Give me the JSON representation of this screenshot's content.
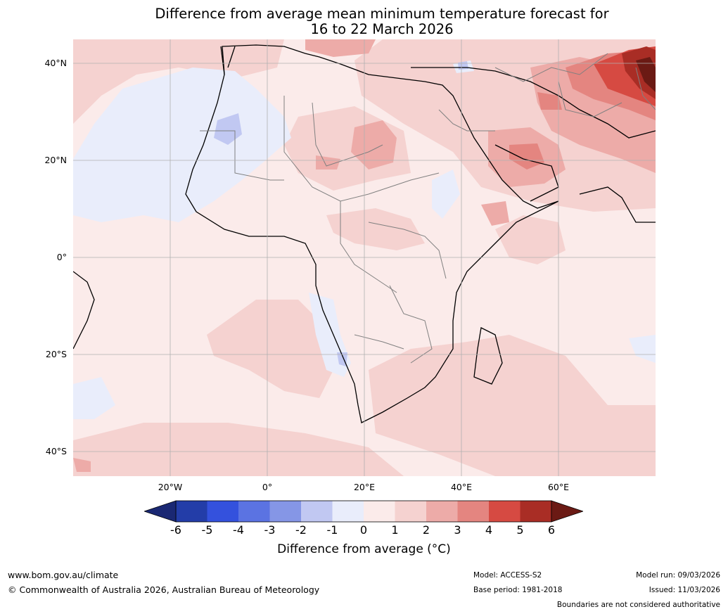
{
  "title": {
    "line1": "Difference from average mean minimum temperature forecast for",
    "line2": "16 to 22 March 2026"
  },
  "map": {
    "region": "Africa",
    "lat_labels": [
      "40°N",
      "20°N",
      "0°",
      "20°S",
      "40°S"
    ],
    "lon_labels": [
      "20°W",
      "0°",
      "20°E",
      "40°E",
      "60°E"
    ]
  },
  "colorbar": {
    "ticks": [
      "-6",
      "-5",
      "-4",
      "-3",
      "-2",
      "-1",
      "0",
      "1",
      "2",
      "3",
      "4",
      "5",
      "6"
    ],
    "label": "Difference from average (°C)",
    "colors": {
      "under": "#1a2873",
      "bins": [
        "#233da8",
        "#3451dd",
        "#5b73e2",
        "#8596e6",
        "#c1c8f2",
        "#e9edfb",
        "#fbebea",
        "#f5d2d0",
        "#edaba8",
        "#e48580",
        "#d64a42",
        "#a92d25"
      ],
      "over": "#6b1a14"
    }
  },
  "footer": {
    "website": "www.bom.gov.au/climate",
    "copyright": "© Commonwealth of Australia 2026, Australian Bureau of Meteorology",
    "model": "Model: ACCESS-S2",
    "base_period": "Base period: 1981-2018",
    "model_run": "Model run: 09/03/2026",
    "issued": "Issued: 11/03/2026",
    "disclaimer": "Boundaries are not considered authoritative"
  }
}
